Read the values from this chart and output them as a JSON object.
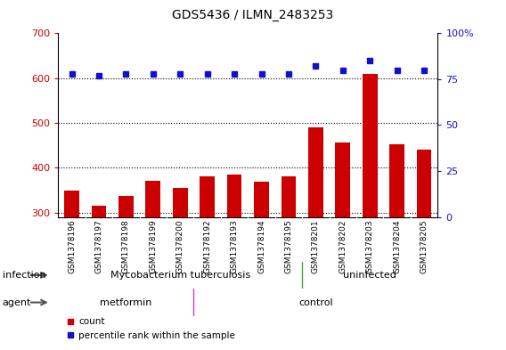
{
  "title": "GDS5436 / ILMN_2483253",
  "samples": [
    "GSM1378196",
    "GSM1378197",
    "GSM1378198",
    "GSM1378199",
    "GSM1378200",
    "GSM1378192",
    "GSM1378193",
    "GSM1378194",
    "GSM1378195",
    "GSM1378201",
    "GSM1378202",
    "GSM1378203",
    "GSM1378204",
    "GSM1378205"
  ],
  "counts": [
    348,
    315,
    337,
    370,
    354,
    380,
    384,
    368,
    381,
    490,
    457,
    610,
    453,
    440
  ],
  "percentile_ranks": [
    78,
    77,
    78,
    78,
    78,
    78,
    78,
    78,
    78,
    82,
    80,
    85,
    80,
    80
  ],
  "ylim_left": [
    290,
    700
  ],
  "ylim_right": [
    0,
    100
  ],
  "yticks_left": [
    300,
    400,
    500,
    600,
    700
  ],
  "yticks_right": [
    0,
    25,
    50,
    75,
    100
  ],
  "bar_color": "#cc0000",
  "dot_color": "#1111cc",
  "bar_bottom": 290,
  "n_tb": 9,
  "n_metformin": 5,
  "infection_label_0": "Mycobacterium tuberculosis",
  "infection_label_1": "uninfected",
  "agent_label_0": "metformin",
  "agent_label_1": "control",
  "infection_color": "#b0f0b0",
  "agent_color": "#f070f0",
  "tick_area_color": "#d0d0d0",
  "bar_color_border": "#cc0000",
  "legend_count_label": "count",
  "legend_percentile_label": "percentile rank within the sample",
  "grid_color": "#000000",
  "spine_color": "#000000"
}
